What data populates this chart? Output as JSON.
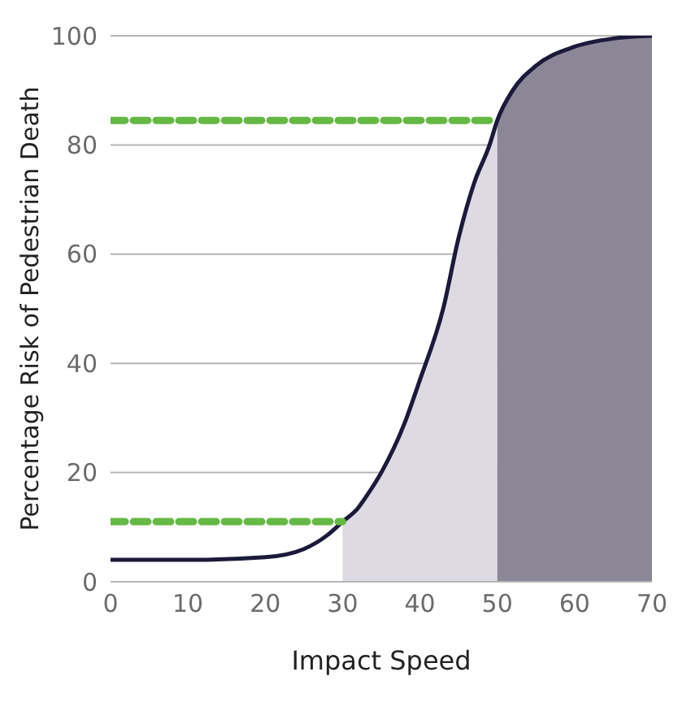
{
  "chart_data": {
    "type": "line",
    "xlabel": "Impact Speed",
    "ylabel": "Percentage Risk of Pedestrian Death",
    "xlim": [
      0,
      70
    ],
    "ylim": [
      0,
      100
    ],
    "xticks": [
      0,
      10,
      20,
      30,
      40,
      50,
      60,
      70
    ],
    "yticks": [
      0,
      20,
      40,
      60,
      80,
      100
    ],
    "grid": "y",
    "marker": "none",
    "series": [
      {
        "type": "area",
        "color": "#dddae3",
        "x": [
          30,
          32,
          33,
          35,
          38,
          40,
          43,
          45,
          47,
          49,
          50
        ],
        "values": [
          11,
          13.5,
          15.5,
          20,
          29,
          37,
          50,
          63,
          73,
          80,
          84.5
        ]
      },
      {
        "type": "area",
        "color": "#8b8797",
        "x": [
          50,
          52,
          55,
          60,
          65,
          70
        ],
        "values": [
          84.5,
          90,
          94.5,
          98,
          99.5,
          100
        ]
      },
      {
        "color": "#1c1a3a",
        "line_style": "solid",
        "x": [
          0,
          10,
          20,
          25,
          28,
          30,
          32,
          33,
          35,
          38,
          40,
          43,
          45,
          47,
          49,
          50,
          52,
          55,
          60,
          65,
          70
        ],
        "values": [
          4,
          4,
          4.5,
          6,
          8.5,
          11,
          13.5,
          15.5,
          20,
          29,
          37,
          50,
          63,
          73,
          80,
          84.5,
          90,
          94.5,
          98,
          99.5,
          100
        ]
      },
      {
        "color": "#66b845",
        "line_style": "dashed",
        "x": [
          0,
          30
        ],
        "values": [
          11,
          11
        ]
      },
      {
        "color": "#66b845",
        "line_style": "dashed",
        "x": [
          0,
          50
        ],
        "values": [
          84.5,
          84.5
        ]
      }
    ]
  }
}
